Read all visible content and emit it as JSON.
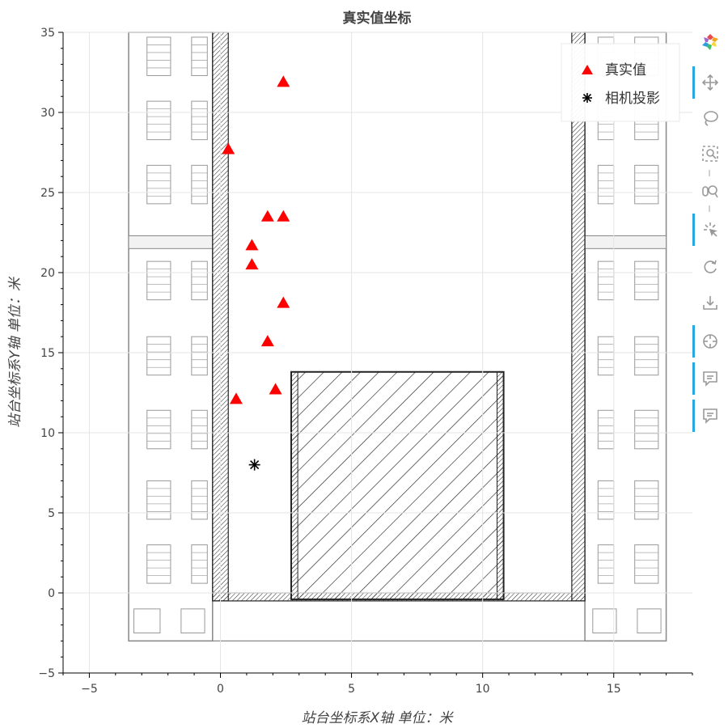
{
  "chart_data": {
    "type": "scatter",
    "title": "真实值坐标",
    "xlabel": "站台坐标系X轴 单位：米",
    "ylabel": "站台坐标系Y轴 单位：米",
    "xlim": [
      -6,
      18
    ],
    "ylim": [
      -5,
      35
    ],
    "x_ticks": [
      -5,
      0,
      5,
      10,
      15
    ],
    "y_ticks": [
      -5,
      0,
      5,
      10,
      15,
      20,
      25,
      30,
      35
    ],
    "grid": true,
    "legend_position": "top-right",
    "background": "station platform floor plan (drawing)",
    "series": [
      {
        "name": "真实值",
        "marker": "triangle",
        "color": "#ff0000",
        "points": [
          [
            2.4,
            31.9
          ],
          [
            0.3,
            27.7
          ],
          [
            1.8,
            23.5
          ],
          [
            2.4,
            23.5
          ],
          [
            1.2,
            21.7
          ],
          [
            1.2,
            20.5
          ],
          [
            2.4,
            18.1
          ],
          [
            1.8,
            15.7
          ],
          [
            0.6,
            12.1
          ],
          [
            2.1,
            12.7
          ]
        ]
      },
      {
        "name": "相机投影",
        "marker": "asterisk",
        "color": "#000000",
        "points": [
          [
            1.3,
            8.0
          ]
        ]
      }
    ]
  },
  "toolbar": {
    "tools": [
      "bokeh-logo-icon",
      "pan-icon",
      "lasso-select-icon",
      "box-zoom-icon",
      "wheel-zoom-icon",
      "tap-icon",
      "reset-icon",
      "save-icon",
      "crosshair-icon",
      "hover-icon",
      "hover-icon-2"
    ],
    "active": [
      "pan-icon",
      "tap-icon",
      "crosshair-icon",
      "hover-icon",
      "hover-icon-2"
    ]
  }
}
